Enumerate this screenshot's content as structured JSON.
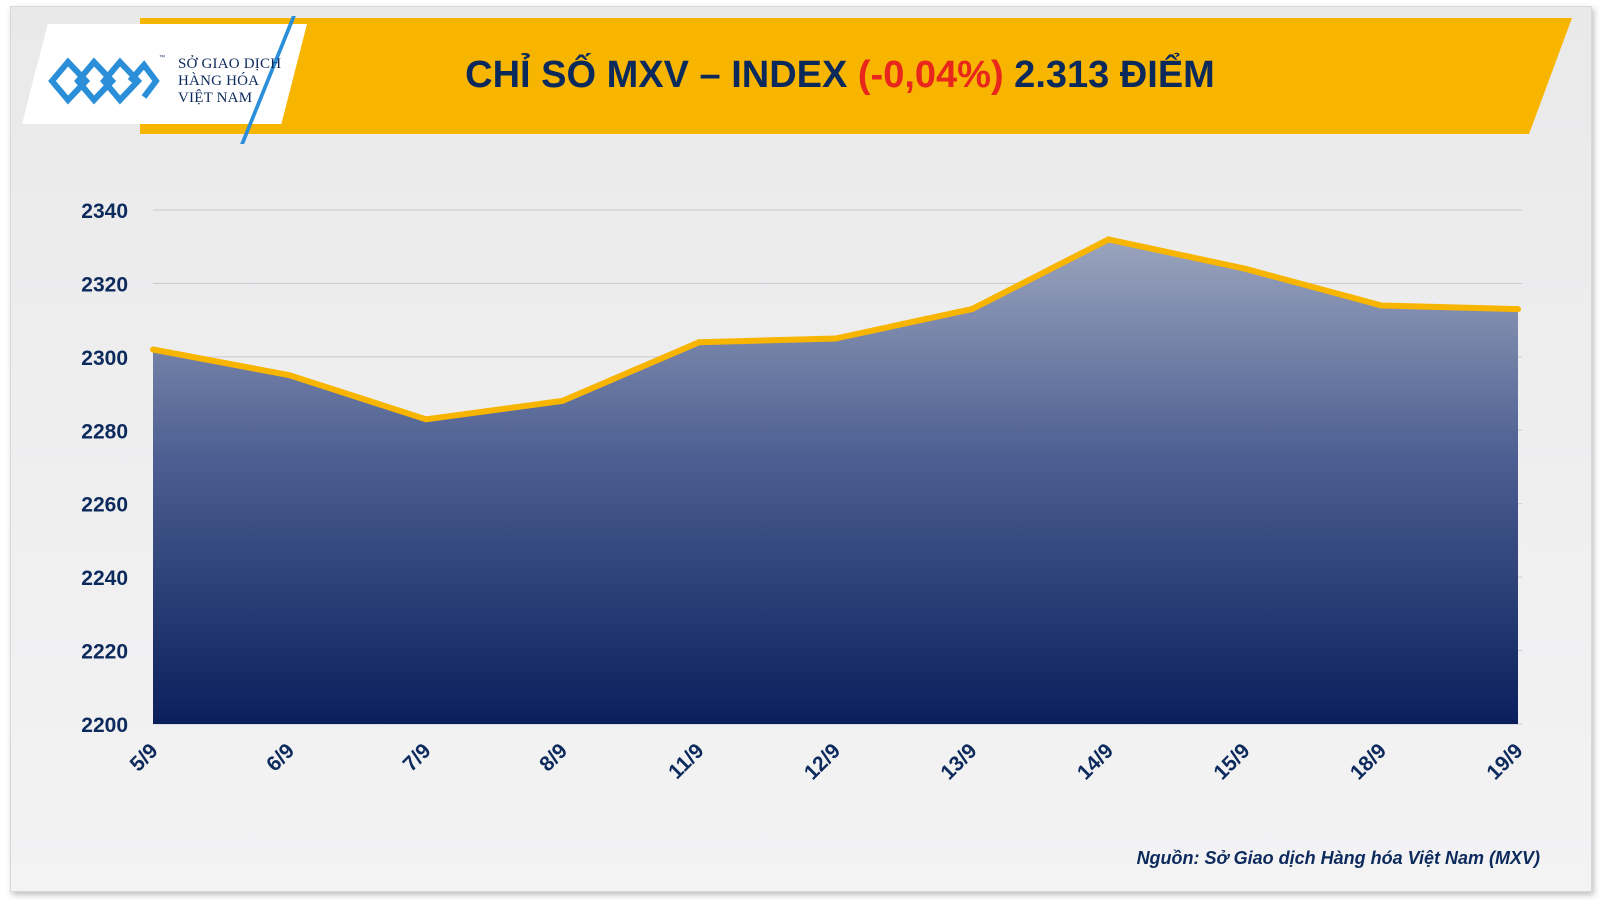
{
  "header": {
    "logo_lines": [
      "SỞ GIAO DỊCH",
      "HÀNG HÓA",
      "VIỆT NAM"
    ],
    "logo_tm": "™",
    "title_prefix": "CHỈ SỐ MXV – INDEX ",
    "title_change": "(-0,04%)",
    "title_suffix": " 2.313 ĐIỂM"
  },
  "colors": {
    "banner": "#f8b500",
    "line": "#f8b500",
    "area_top": "#9aa4bd",
    "area_bottom": "#0a1f5c",
    "text": "#0d2a5c",
    "change": "#e8261c"
  },
  "chart_data": {
    "type": "area",
    "categories": [
      "5/9",
      "6/9",
      "7/9",
      "8/9",
      "11/9",
      "12/9",
      "13/9",
      "14/9",
      "15/9",
      "18/9",
      "19/9"
    ],
    "values": [
      2302,
      2295,
      2283,
      2288,
      2304,
      2305,
      2313,
      2332,
      2324,
      2314,
      2313
    ],
    "ylim": [
      2200,
      2340
    ],
    "yticks": [
      "2200",
      "2220",
      "2240",
      "2260",
      "2280",
      "2300",
      "2320",
      "2340"
    ],
    "grid": true,
    "title": "CHỈ SỐ MXV – INDEX (-0,04%) 2.313 ĐIỂM",
    "xlabel": "",
    "ylabel": ""
  },
  "source": "Nguồn: Sở Giao dịch Hàng hóa Việt Nam (MXV)"
}
